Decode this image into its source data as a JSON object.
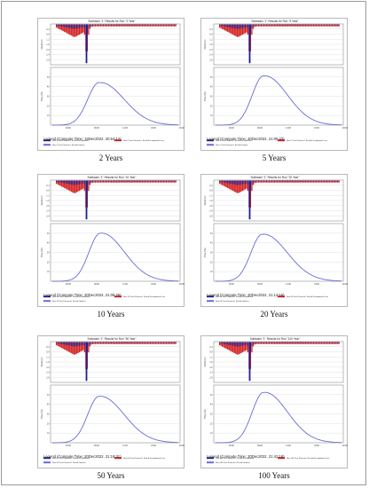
{
  "panels": [
    {
      "window_title": "Subbasin \"1\" Results for Run \"2 Year\"",
      "legend_title": "Legend (Compute Time: 19Dec2022, 20:54:12)",
      "caption": "2 Years",
      "hyetograph": {
        "peak": 1.0
      },
      "hydrograph": {
        "peak_x": 0.37,
        "peak": 0.76,
        "rise": 0.12,
        "fall": 0.26
      }
    },
    {
      "window_title": "Subbasin \"1\" Results for Run \"5 Year\"",
      "legend_title": "Legend (Compute Time: 20Dec2022, 21:05:43)",
      "caption": "5 Years",
      "hyetograph": {
        "peak": 1.0
      },
      "hydrograph": {
        "peak_x": 0.38,
        "peak": 0.88,
        "rise": 0.12,
        "fall": 0.25
      }
    },
    {
      "window_title": "Subbasin \"1\" Results for Run \"10 Year\"",
      "legend_title": "Legend (Compute Time: 20Dec2022, 21:08:25)",
      "caption": "10 Years",
      "hyetograph": {
        "peak": 1.0
      },
      "hydrograph": {
        "peak_x": 0.38,
        "peak": 0.86,
        "rise": 0.12,
        "fall": 0.25
      }
    },
    {
      "window_title": "Subbasin \"1\" Results for Run \"20 Year\"",
      "legend_title": "Legend (Compute Time: 20Dec2022, 21:14:16)",
      "caption": "20 Years",
      "hyetograph": {
        "peak": 1.0
      },
      "hydrograph": {
        "peak_x": 0.37,
        "peak": 0.84,
        "rise": 0.12,
        "fall": 0.26
      }
    },
    {
      "window_title": "Subbasin \"1\" Results for Run \"50 Year\"",
      "legend_title": "Legend (Compute Time: 20Dec2022, 21:19:31)",
      "caption": "50 Years",
      "hyetograph": {
        "peak": 1.0
      },
      "hydrograph": {
        "peak_x": 0.37,
        "peak": 0.83,
        "rise": 0.12,
        "fall": 0.26
      }
    },
    {
      "window_title": "Subbasin \"1\" Results for Run \"100 Year\"",
      "legend_title": "Legend (Compute Time: 20Dec2022, 21:42:18)",
      "caption": "100 Years",
      "hyetograph": {
        "peak": 1.0
      },
      "hydrograph": {
        "peak_x": 0.38,
        "peak": 0.9,
        "rise": 0.12,
        "fall": 0.25
      }
    }
  ],
  "chart_data": [
    {
      "type": "bar",
      "series": [
        {
          "name": "Run:2 Year Element:1 Result:Precipitation"
        },
        {
          "name": "Run:2 Year Element:1 Result:Precipitation Loss"
        }
      ],
      "note_type": "hyetograph"
    },
    {
      "type": "line",
      "series": [
        {
          "name": "Run:2 Year Element:1 Result:Outflow"
        }
      ]
    }
  ],
  "colors": {
    "precip": "#1f1f8f",
    "loss": "#d42020",
    "outflow": "#6a6ad8",
    "grid": "#cfcfcf",
    "axis": "#555555"
  }
}
